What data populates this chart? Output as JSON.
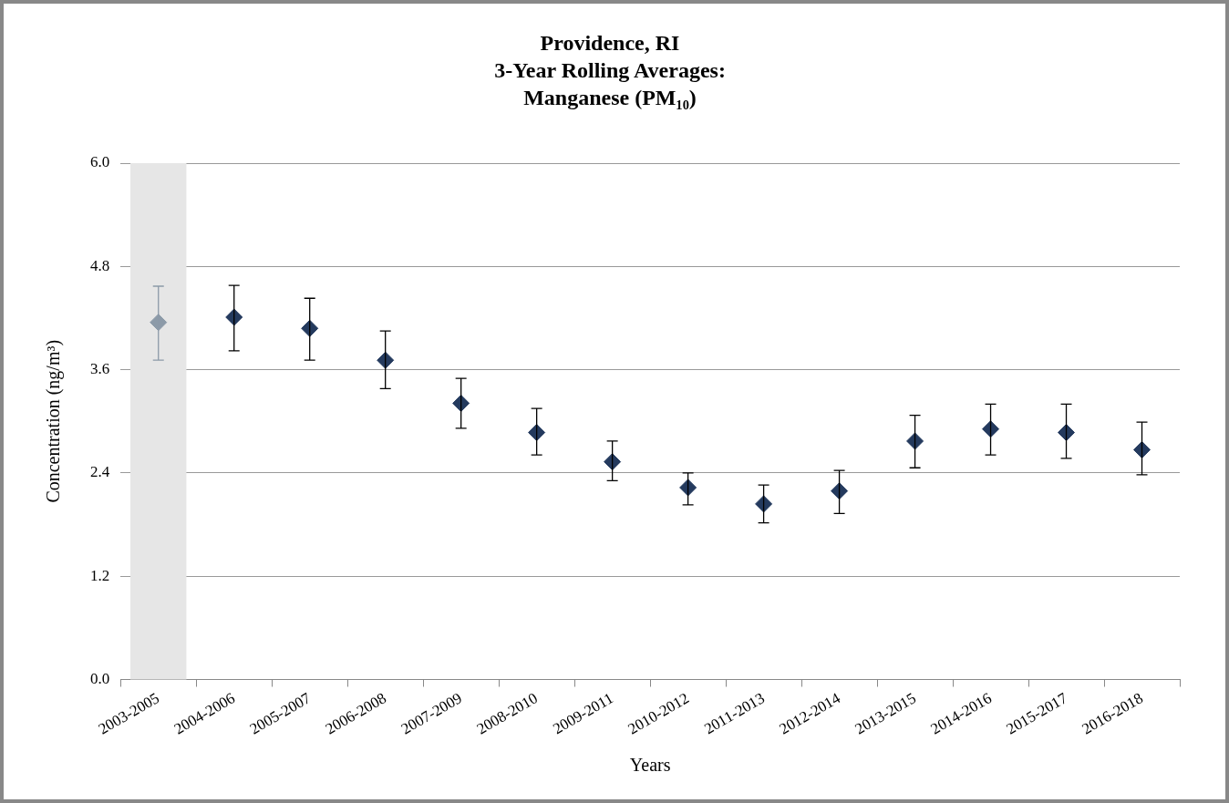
{
  "chart_data": {
    "type": "scatter",
    "title": "Providence, RI\n3-Year Rolling Averages:\nManganese (PM₁₀)",
    "xlabel": "Years",
    "ylabel": "Concentration (ng/m³)",
    "categories": [
      "2003-2005",
      "2004-2006",
      "2005-2007",
      "2006-2008",
      "2007-2009",
      "2008-2010",
      "2009-2011",
      "2010-2012",
      "2011-2013",
      "2012-2014",
      "2013-2015",
      "2014-2016",
      "2015-2017",
      "2016-2018"
    ],
    "values": [
      4.15,
      4.21,
      4.08,
      3.71,
      3.21,
      2.87,
      2.53,
      2.23,
      2.04,
      2.19,
      2.77,
      2.91,
      2.87,
      2.67
    ],
    "errors": [
      [
        3.71,
        4.57
      ],
      [
        3.82,
        4.58
      ],
      [
        3.71,
        4.43
      ],
      [
        3.38,
        4.05
      ],
      [
        2.92,
        3.5
      ],
      [
        2.61,
        3.15
      ],
      [
        2.31,
        2.77
      ],
      [
        2.03,
        2.4
      ],
      [
        1.82,
        2.26
      ],
      [
        1.93,
        2.43
      ],
      [
        2.46,
        3.07
      ],
      [
        2.61,
        3.2
      ],
      [
        2.57,
        3.2
      ],
      [
        2.38,
        2.99
      ]
    ],
    "colors": [
      "#8c9aa8",
      "#243a5e",
      "#243a5e",
      "#243a5e",
      "#243a5e",
      "#243a5e",
      "#243a5e",
      "#243a5e",
      "#243a5e",
      "#243a5e",
      "#243a5e",
      "#243a5e",
      "#243a5e",
      "#243a5e"
    ],
    "bands": [
      {
        "axis": "x",
        "from": "2003-2005",
        "to": "2003-2005",
        "color": "#e6e6e6"
      }
    ],
    "ylim": [
      0,
      6
    ],
    "yticks": [
      {
        "value": 0,
        "label": "0.0"
      },
      {
        "value": 1.2,
        "label": "1.2"
      },
      {
        "value": 2.4,
        "label": "2.4"
      },
      {
        "value": 3.6,
        "label": "3.6"
      },
      {
        "value": 4.8,
        "label": "4.8"
      },
      {
        "value": 6,
        "label": "6.0"
      }
    ],
    "grid": "y",
    "legend": false,
    "marker": "diamond"
  }
}
